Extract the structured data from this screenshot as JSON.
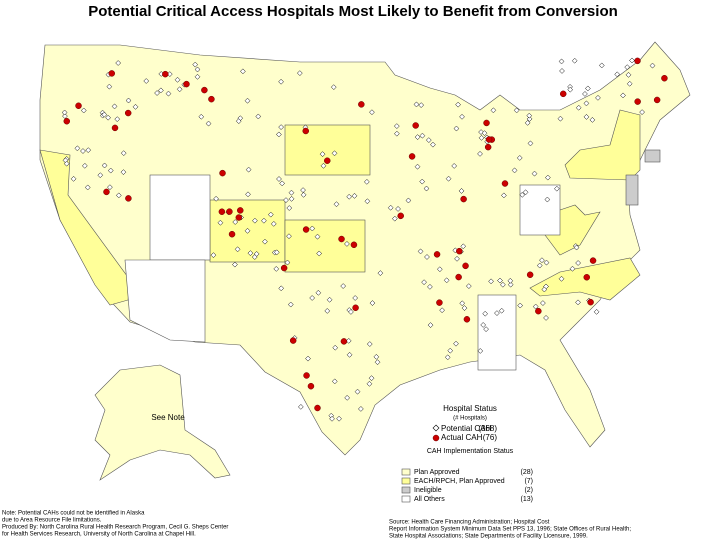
{
  "title": "Potential Critical Access Hospitals Most Likely to Benefit from Conversion",
  "map": {
    "alaska_label": "See Note"
  },
  "legend": {
    "status_title": "Hospital Status",
    "status_subtitle": "(# Hospitals)",
    "status_items": [
      {
        "label": "Potential CAH",
        "count": "(368)"
      },
      {
        "label": "Actual CAH",
        "count": "(76)"
      }
    ],
    "implementation_title": "CAH Implementation Status",
    "implementation_items": [
      {
        "label": "Plan Approved",
        "count": "(28)"
      },
      {
        "label": "EACH/RPCH, Plan Approved",
        "count": "(7)"
      },
      {
        "label": "Ineligible",
        "count": "(2)"
      },
      {
        "label": "All Others",
        "count": "(13)"
      }
    ]
  },
  "note": [
    "Note:  Potential CAHs could not be identified in Alaska",
    "due to Area Resource File limitations.",
    "Produced By: North Carolina Rural Health Research Program, Cecil G. Sheps Center",
    "for Health Services Research, University of North Carolina at Chapel Hill."
  ],
  "source": [
    "Source:  Health Care Financing Administration;  Hospital Cost",
    "Report Information System Minimum Data Set PPS 13, 1996;  State Offices of Rural Health;",
    "State Hospital Associations; State Departments of Facility Licensure, 1999."
  ]
}
